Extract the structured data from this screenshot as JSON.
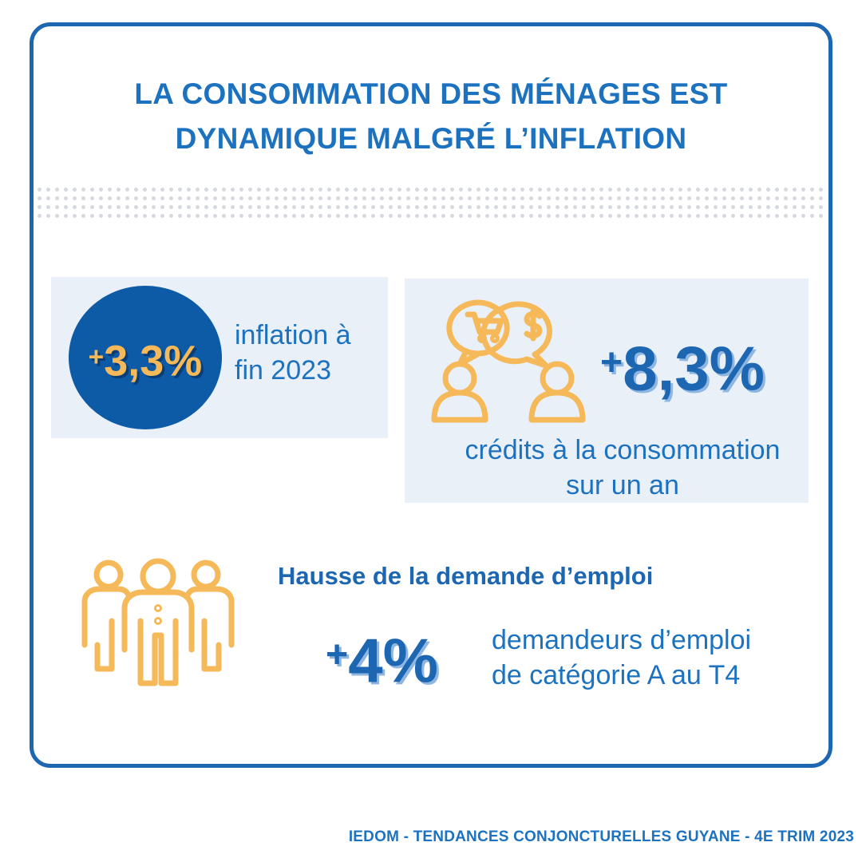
{
  "title": {
    "line1": "LA CONSOMMATION DES MÉNAGES EST",
    "line2": "DYNAMIQUE MALGRÉ L’INFLATION"
  },
  "inflation": {
    "sign": "+",
    "value": "3,3%",
    "label_line1": "inflation à",
    "label_line2": "fin 2023"
  },
  "credit": {
    "sign": "+",
    "value": "8,3%",
    "label_line1": "crédits à la consommation",
    "label_line2": "sur un an"
  },
  "emploi": {
    "heading": "Hausse de la demande d’emploi",
    "sign": "+",
    "value": "4%",
    "label_line1": "demandeurs d’emploi",
    "label_line2": "de catégorie A au T4"
  },
  "footer": "IEDOM - TENDANCES CONJONCTURELLES GUYANE - 4E TRIM 2023",
  "icons": {
    "credit": "people-talking-cart-dollar-icon",
    "emploi": "group-of-people-icon"
  },
  "colors": {
    "primary_blue": "#1d66b2",
    "dark_blue": "#0d5aa6",
    "accent_yellow": "#f5b95a",
    "panel_bg": "#e9f0f8"
  }
}
